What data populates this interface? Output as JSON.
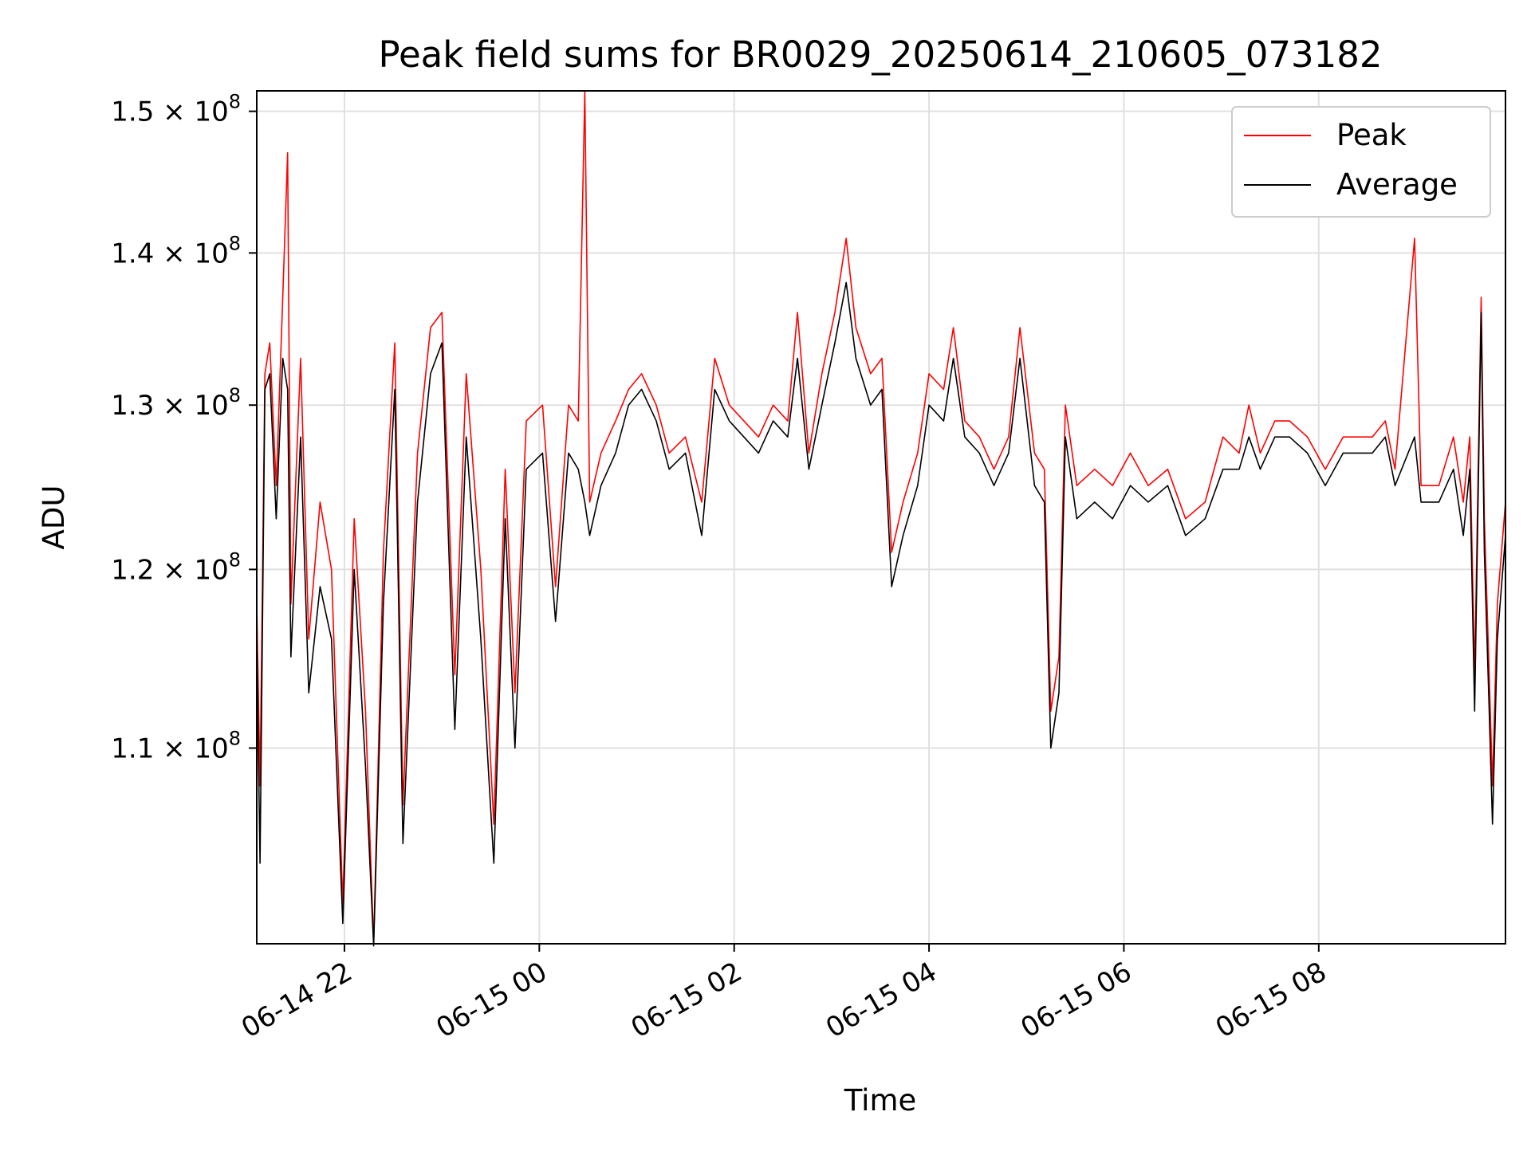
{
  "chart_data": {
    "type": "line",
    "title": "Peak field sums for BR0029_20250614_210605_073182",
    "xlabel": "Time",
    "ylabel": "ADU",
    "y_scale": "log",
    "xlim": [
      "2025-06-14 21:06",
      "2025-06-15 09:55"
    ],
    "ylim": [
      100000000,
      151500000
    ],
    "x_ticks": [
      {
        "value": "2025-06-14 22:00",
        "label": "06-14 22"
      },
      {
        "value": "2025-06-15 00:00",
        "label": "06-15 00"
      },
      {
        "value": "2025-06-15 02:00",
        "label": "06-15 02"
      },
      {
        "value": "2025-06-15 04:00",
        "label": "06-15 04"
      },
      {
        "value": "2025-06-15 06:00",
        "label": "06-15 06"
      },
      {
        "value": "2025-06-15 08:00",
        "label": "06-15 08"
      }
    ],
    "y_ticks": [
      {
        "value": 110000000,
        "base": "1.1",
        "exp": "8"
      },
      {
        "value": 120000000,
        "base": "1.2",
        "exp": "8"
      },
      {
        "value": 130000000,
        "base": "1.3",
        "exp": "8"
      },
      {
        "value": 140000000,
        "base": "1.4",
        "exp": "8"
      },
      {
        "value": 150000000,
        "base": "1.5",
        "exp": "8"
      }
    ],
    "grid": true,
    "legend_position": "top-right",
    "colors": {
      "peak": "#ff0000",
      "average": "#000000",
      "grid": "#e0e0e0"
    },
    "series": [
      {
        "name": "Peak",
        "color": "#ff0000",
        "points": [
          [
            "2025-06-14 21:06",
            118000000
          ],
          [
            "2025-06-14 21:08",
            108000000
          ],
          [
            "2025-06-14 21:11",
            132000000
          ],
          [
            "2025-06-14 21:14",
            134000000
          ],
          [
            "2025-06-14 21:18",
            125000000
          ],
          [
            "2025-06-14 21:22",
            137000000
          ],
          [
            "2025-06-14 21:25",
            147000000
          ],
          [
            "2025-06-14 21:27",
            118000000
          ],
          [
            "2025-06-14 21:33",
            133000000
          ],
          [
            "2025-06-14 21:38",
            116000000
          ],
          [
            "2025-06-14 21:45",
            124000000
          ],
          [
            "2025-06-14 21:52",
            120000000
          ],
          [
            "2025-06-14 21:59",
            102000000
          ],
          [
            "2025-06-14 22:06",
            123000000
          ],
          [
            "2025-06-14 22:13",
            112000000
          ],
          [
            "2025-06-14 22:18",
            100000000
          ],
          [
            "2025-06-14 22:24",
            121000000
          ],
          [
            "2025-06-14 22:31",
            134000000
          ],
          [
            "2025-06-14 22:36",
            107000000
          ],
          [
            "2025-06-14 22:45",
            127000000
          ],
          [
            "2025-06-14 22:53",
            135000000
          ],
          [
            "2025-06-14 23:00",
            136000000
          ],
          [
            "2025-06-14 23:08",
            114000000
          ],
          [
            "2025-06-14 23:15",
            132000000
          ],
          [
            "2025-06-14 23:24",
            120000000
          ],
          [
            "2025-06-14 23:32",
            106000000
          ],
          [
            "2025-06-14 23:39",
            126000000
          ],
          [
            "2025-06-14 23:45",
            113000000
          ],
          [
            "2025-06-14 23:52",
            129000000
          ],
          [
            "2025-06-15 00:02",
            130000000
          ],
          [
            "2025-06-15 00:10",
            119000000
          ],
          [
            "2025-06-15 00:18",
            130000000
          ],
          [
            "2025-06-15 00:24",
            129000000
          ],
          [
            "2025-06-15 00:28",
            151500000
          ],
          [
            "2025-06-15 00:31",
            124000000
          ],
          [
            "2025-06-15 00:38",
            127000000
          ],
          [
            "2025-06-15 00:47",
            129000000
          ],
          [
            "2025-06-15 00:55",
            131000000
          ],
          [
            "2025-06-15 01:03",
            132000000
          ],
          [
            "2025-06-15 01:12",
            130000000
          ],
          [
            "2025-06-15 01:20",
            127000000
          ],
          [
            "2025-06-15 01:30",
            128000000
          ],
          [
            "2025-06-15 01:40",
            124000000
          ],
          [
            "2025-06-15 01:48",
            133000000
          ],
          [
            "2025-06-15 01:57",
            130000000
          ],
          [
            "2025-06-15 02:06",
            129000000
          ],
          [
            "2025-06-15 02:15",
            128000000
          ],
          [
            "2025-06-15 02:24",
            130000000
          ],
          [
            "2025-06-15 02:33",
            129000000
          ],
          [
            "2025-06-15 02:39",
            136000000
          ],
          [
            "2025-06-15 02:46",
            127000000
          ],
          [
            "2025-06-15 02:54",
            132000000
          ],
          [
            "2025-06-15 03:02",
            136000000
          ],
          [
            "2025-06-15 03:09",
            141000000
          ],
          [
            "2025-06-15 03:15",
            135000000
          ],
          [
            "2025-06-15 03:24",
            132000000
          ],
          [
            "2025-06-15 03:31",
            133000000
          ],
          [
            "2025-06-15 03:37",
            121000000
          ],
          [
            "2025-06-15 03:44",
            124000000
          ],
          [
            "2025-06-15 03:53",
            127000000
          ],
          [
            "2025-06-15 04:00",
            132000000
          ],
          [
            "2025-06-15 04:09",
            131000000
          ],
          [
            "2025-06-15 04:15",
            135000000
          ],
          [
            "2025-06-15 04:22",
            129000000
          ],
          [
            "2025-06-15 04:31",
            128000000
          ],
          [
            "2025-06-15 04:40",
            126000000
          ],
          [
            "2025-06-15 04:49",
            128000000
          ],
          [
            "2025-06-15 04:56",
            135000000
          ],
          [
            "2025-06-15 05:05",
            127000000
          ],
          [
            "2025-06-15 05:11",
            126000000
          ],
          [
            "2025-06-15 05:15",
            112000000
          ],
          [
            "2025-06-15 05:20",
            115000000
          ],
          [
            "2025-06-15 05:24",
            130000000
          ],
          [
            "2025-06-15 05:31",
            125000000
          ],
          [
            "2025-06-15 05:42",
            126000000
          ],
          [
            "2025-06-15 05:53",
            125000000
          ],
          [
            "2025-06-15 06:04",
            127000000
          ],
          [
            "2025-06-15 06:15",
            125000000
          ],
          [
            "2025-06-15 06:27",
            126000000
          ],
          [
            "2025-06-15 06:38",
            123000000
          ],
          [
            "2025-06-15 06:50",
            124000000
          ],
          [
            "2025-06-15 07:01",
            128000000
          ],
          [
            "2025-06-15 07:11",
            127000000
          ],
          [
            "2025-06-15 07:17",
            130000000
          ],
          [
            "2025-06-15 07:24",
            127000000
          ],
          [
            "2025-06-15 07:33",
            129000000
          ],
          [
            "2025-06-15 07:42",
            129000000
          ],
          [
            "2025-06-15 07:53",
            128000000
          ],
          [
            "2025-06-15 08:04",
            126000000
          ],
          [
            "2025-06-15 08:15",
            128000000
          ],
          [
            "2025-06-15 08:26",
            128000000
          ],
          [
            "2025-06-15 08:33",
            128000000
          ],
          [
            "2025-06-15 08:41",
            129000000
          ],
          [
            "2025-06-15 08:47",
            126000000
          ],
          [
            "2025-06-15 08:59",
            141000000
          ],
          [
            "2025-06-15 09:03",
            125000000
          ],
          [
            "2025-06-15 09:14",
            125000000
          ],
          [
            "2025-06-15 09:23",
            128000000
          ],
          [
            "2025-06-15 09:29",
            124000000
          ],
          [
            "2025-06-15 09:33",
            128000000
          ],
          [
            "2025-06-15 09:36",
            114000000
          ],
          [
            "2025-06-15 09:40",
            137000000
          ],
          [
            "2025-06-15 09:42",
            123000000
          ],
          [
            "2025-06-15 09:45",
            114000000
          ],
          [
            "2025-06-15 09:47",
            108000000
          ],
          [
            "2025-06-15 09:50",
            118000000
          ],
          [
            "2025-06-15 09:55",
            124000000
          ]
        ]
      },
      {
        "name": "Average",
        "color": "#000000",
        "points": [
          [
            "2025-06-14 21:06",
            116000000
          ],
          [
            "2025-06-14 21:08",
            104000000
          ],
          [
            "2025-06-14 21:11",
            131000000
          ],
          [
            "2025-06-14 21:14",
            132000000
          ],
          [
            "2025-06-14 21:18",
            123000000
          ],
          [
            "2025-06-14 21:22",
            133000000
          ],
          [
            "2025-06-14 21:25",
            131000000
          ],
          [
            "2025-06-14 21:27",
            115000000
          ],
          [
            "2025-06-14 21:33",
            128000000
          ],
          [
            "2025-06-14 21:38",
            113000000
          ],
          [
            "2025-06-14 21:45",
            119000000
          ],
          [
            "2025-06-14 21:52",
            116000000
          ],
          [
            "2025-06-14 21:59",
            101000000
          ],
          [
            "2025-06-14 22:06",
            120000000
          ],
          [
            "2025-06-14 22:13",
            109000000
          ],
          [
            "2025-06-14 22:18",
            99900000
          ],
          [
            "2025-06-14 22:24",
            118000000
          ],
          [
            "2025-06-14 22:31",
            131000000
          ],
          [
            "2025-06-14 22:36",
            105000000
          ],
          [
            "2025-06-14 22:45",
            124000000
          ],
          [
            "2025-06-14 22:53",
            132000000
          ],
          [
            "2025-06-14 23:00",
            134000000
          ],
          [
            "2025-06-14 23:08",
            111000000
          ],
          [
            "2025-06-14 23:15",
            128000000
          ],
          [
            "2025-06-14 23:24",
            116000000
          ],
          [
            "2025-06-14 23:32",
            104000000
          ],
          [
            "2025-06-14 23:39",
            123000000
          ],
          [
            "2025-06-14 23:45",
            110000000
          ],
          [
            "2025-06-14 23:52",
            126000000
          ],
          [
            "2025-06-15 00:02",
            127000000
          ],
          [
            "2025-06-15 00:10",
            117000000
          ],
          [
            "2025-06-15 00:18",
            127000000
          ],
          [
            "2025-06-15 00:24",
            126000000
          ],
          [
            "2025-06-15 00:28",
            124000000
          ],
          [
            "2025-06-15 00:31",
            122000000
          ],
          [
            "2025-06-15 00:38",
            125000000
          ],
          [
            "2025-06-15 00:47",
            127000000
          ],
          [
            "2025-06-15 00:55",
            130000000
          ],
          [
            "2025-06-15 01:03",
            131000000
          ],
          [
            "2025-06-15 01:12",
            129000000
          ],
          [
            "2025-06-15 01:20",
            126000000
          ],
          [
            "2025-06-15 01:30",
            127000000
          ],
          [
            "2025-06-15 01:40",
            122000000
          ],
          [
            "2025-06-15 01:48",
            131000000
          ],
          [
            "2025-06-15 01:57",
            129000000
          ],
          [
            "2025-06-15 02:06",
            128000000
          ],
          [
            "2025-06-15 02:15",
            127000000
          ],
          [
            "2025-06-15 02:24",
            129000000
          ],
          [
            "2025-06-15 02:33",
            128000000
          ],
          [
            "2025-06-15 02:39",
            133000000
          ],
          [
            "2025-06-15 02:46",
            126000000
          ],
          [
            "2025-06-15 02:54",
            130000000
          ],
          [
            "2025-06-15 03:02",
            134000000
          ],
          [
            "2025-06-15 03:09",
            138000000
          ],
          [
            "2025-06-15 03:15",
            133000000
          ],
          [
            "2025-06-15 03:24",
            130000000
          ],
          [
            "2025-06-15 03:31",
            131000000
          ],
          [
            "2025-06-15 03:37",
            119000000
          ],
          [
            "2025-06-15 03:44",
            122000000
          ],
          [
            "2025-06-15 03:53",
            125000000
          ],
          [
            "2025-06-15 04:00",
            130000000
          ],
          [
            "2025-06-15 04:09",
            129000000
          ],
          [
            "2025-06-15 04:15",
            133000000
          ],
          [
            "2025-06-15 04:22",
            128000000
          ],
          [
            "2025-06-15 04:31",
            127000000
          ],
          [
            "2025-06-15 04:40",
            125000000
          ],
          [
            "2025-06-15 04:49",
            127000000
          ],
          [
            "2025-06-15 04:56",
            133000000
          ],
          [
            "2025-06-15 05:05",
            125000000
          ],
          [
            "2025-06-15 05:11",
            124000000
          ],
          [
            "2025-06-15 05:15",
            110000000
          ],
          [
            "2025-06-15 05:20",
            113000000
          ],
          [
            "2025-06-15 05:24",
            128000000
          ],
          [
            "2025-06-15 05:31",
            123000000
          ],
          [
            "2025-06-15 05:42",
            124000000
          ],
          [
            "2025-06-15 05:53",
            123000000
          ],
          [
            "2025-06-15 06:04",
            125000000
          ],
          [
            "2025-06-15 06:15",
            124000000
          ],
          [
            "2025-06-15 06:27",
            125000000
          ],
          [
            "2025-06-15 06:38",
            122000000
          ],
          [
            "2025-06-15 06:50",
            123000000
          ],
          [
            "2025-06-15 07:01",
            126000000
          ],
          [
            "2025-06-15 07:11",
            126000000
          ],
          [
            "2025-06-15 07:17",
            128000000
          ],
          [
            "2025-06-15 07:24",
            126000000
          ],
          [
            "2025-06-15 07:33",
            128000000
          ],
          [
            "2025-06-15 07:42",
            128000000
          ],
          [
            "2025-06-15 07:53",
            127000000
          ],
          [
            "2025-06-15 08:04",
            125000000
          ],
          [
            "2025-06-15 08:15",
            127000000
          ],
          [
            "2025-06-15 08:26",
            127000000
          ],
          [
            "2025-06-15 08:33",
            127000000
          ],
          [
            "2025-06-15 08:41",
            128000000
          ],
          [
            "2025-06-15 08:47",
            125000000
          ],
          [
            "2025-06-15 08:59",
            128000000
          ],
          [
            "2025-06-15 09:03",
            124000000
          ],
          [
            "2025-06-15 09:14",
            124000000
          ],
          [
            "2025-06-15 09:23",
            126000000
          ],
          [
            "2025-06-15 09:29",
            122000000
          ],
          [
            "2025-06-15 09:33",
            126000000
          ],
          [
            "2025-06-15 09:36",
            112000000
          ],
          [
            "2025-06-15 09:40",
            136000000
          ],
          [
            "2025-06-15 09:42",
            121000000
          ],
          [
            "2025-06-15 09:45",
            112000000
          ],
          [
            "2025-06-15 09:47",
            106000000
          ],
          [
            "2025-06-15 09:50",
            116000000
          ],
          [
            "2025-06-15 09:55",
            122000000
          ]
        ]
      }
    ]
  }
}
